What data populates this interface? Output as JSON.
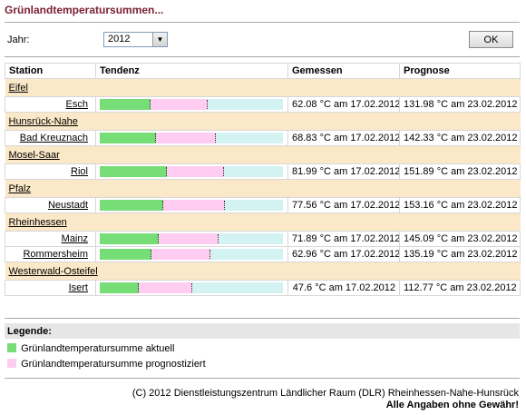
{
  "page": {
    "title": "Grünlandtemperatursummen..."
  },
  "form": {
    "year_label": "Jahr:",
    "year_value": "2012",
    "ok_label": "OK"
  },
  "table": {
    "headers": [
      "Station",
      "Tendenz",
      "Gemessen",
      "Prognose"
    ],
    "groups": [
      {
        "region": "Eifel",
        "stations": [
          {
            "name": "Esch",
            "gemessen": "62.08 °C am 17.02.2012",
            "prognose": "131.98 °C am 23.02.2012",
            "current": 62.08,
            "forecast": 131.98
          }
        ]
      },
      {
        "region": "Hunsrück-Nahe",
        "stations": [
          {
            "name": "Bad Kreuznach",
            "gemessen": "68.83 °C am 17.02.2012",
            "prognose": "142.33 °C am 23.02.2012",
            "current": 68.83,
            "forecast": 142.33
          }
        ]
      },
      {
        "region": "Mosel-Saar",
        "stations": [
          {
            "name": "Riol",
            "gemessen": "81.99 °C am 17.02.2012",
            "prognose": "151.89 °C am 23.02.2012",
            "current": 81.99,
            "forecast": 151.89
          }
        ]
      },
      {
        "region": "Pfalz",
        "stations": [
          {
            "name": "Neustadt",
            "gemessen": "77.56 °C am 17.02.2012",
            "prognose": "153.16 °C am 23.02.2012",
            "current": 77.56,
            "forecast": 153.16
          }
        ]
      },
      {
        "region": "Rheinhessen",
        "stations": [
          {
            "name": "Mainz",
            "gemessen": "71.89 °C am 17.02.2012",
            "prognose": "145.09 °C am 23.02.2012",
            "current": 71.89,
            "forecast": 145.09
          },
          {
            "name": "Rommersheim",
            "gemessen": "62.96 °C am 17.02.2012",
            "prognose": "135.19 °C am 23.02.2012",
            "current": 62.96,
            "forecast": 135.19
          }
        ]
      },
      {
        "region": "Westerwald-Osteifel",
        "stations": [
          {
            "name": "Isert",
            "gemessen": "47.6 °C am 17.02.2012",
            "prognose": "112.77 °C am 23.02.2012",
            "current": 47.6,
            "forecast": 112.77
          }
        ]
      }
    ]
  },
  "legend": {
    "title": "Legende:",
    "items": [
      {
        "label": "Grünlandtemperatursumme aktuell",
        "color": "#77dd77"
      },
      {
        "label": "Grünlandtemperatursumme prognostiziert",
        "color": "#ffccf2"
      }
    ]
  },
  "colors": {
    "title": "#7b2135",
    "region_bg": "#fbe8c8",
    "remaining": "#d3f3f3"
  },
  "footer": {
    "copyright": "(C) 2012 Dienstleistungszentrum Ländlicher Raum (DLR) Rheinhessen-Nahe-Hunsrück",
    "disclaimer": "Alle Angaben ohne Gewähr!"
  }
}
